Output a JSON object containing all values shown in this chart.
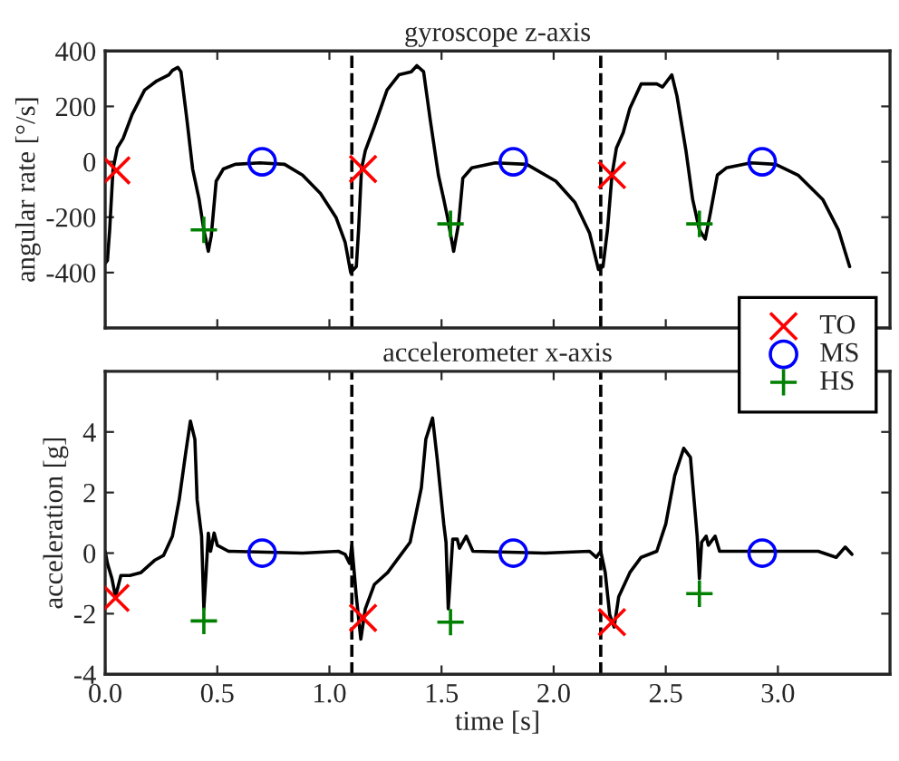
{
  "chart_data": [
    {
      "type": "line",
      "title": "gyroscope z-axis",
      "ylabel": "angular rate [°/s]",
      "xlim": [
        0,
        3.5
      ],
      "xticks": [
        {
          "value": 0,
          "label": null
        },
        {
          "value": 0.5,
          "label": null
        },
        {
          "value": 1,
          "label": null
        },
        {
          "value": 1.5,
          "label": null
        },
        {
          "value": 2,
          "label": null
        },
        {
          "value": 2.5,
          "label": null
        },
        {
          "value": 3,
          "label": null
        }
      ],
      "ylim": [
        -600,
        400
      ],
      "yticks": [
        -400,
        -200,
        0,
        200,
        400
      ],
      "tick_labels": "y",
      "grid": false,
      "legend": "bottom right",
      "ref_lines": [
        {
          "axis": "x",
          "value": 1.1,
          "color": "#000000",
          "line_style": "dashed"
        },
        {
          "axis": "x",
          "value": 2.21,
          "color": "#000000",
          "line_style": "dashed"
        }
      ],
      "series": [
        {
          "color": "#000000",
          "marker": "none",
          "line_style": "solid",
          "x": [
            0.0,
            0.01,
            0.02,
            0.035,
            0.054,
            0.08,
            0.12,
            0.176,
            0.23,
            0.284,
            0.3,
            0.324,
            0.338,
            0.365,
            0.39,
            0.419,
            0.44,
            0.46,
            0.473,
            0.495,
            0.527,
            0.58,
            0.69,
            0.8,
            0.88,
            0.96,
            1.03,
            1.07,
            1.095,
            1.12,
            1.13,
            1.143,
            1.16,
            1.2,
            1.257,
            1.31,
            1.365,
            1.39,
            1.42,
            1.45,
            1.486,
            1.51,
            1.527,
            1.554,
            1.576,
            1.595,
            1.635,
            1.74,
            1.88,
            2.01,
            2.095,
            2.16,
            2.2,
            2.22,
            2.24,
            2.26,
            2.28,
            2.31,
            2.34,
            2.39,
            2.46,
            2.486,
            2.527,
            2.55,
            2.59,
            2.62,
            2.65,
            2.676,
            2.7,
            2.73,
            2.77,
            2.88,
            2.99,
            3.09,
            3.2,
            3.27,
            3.32
          ],
          "values": [
            -367,
            -356,
            -246,
            -26,
            50,
            84,
            171,
            259,
            292,
            314,
            330,
            341,
            325,
            149,
            -26,
            -136,
            -246,
            -323,
            -268,
            -70,
            -26,
            -9,
            -4,
            -9,
            -48,
            -114,
            -202,
            -290,
            -400,
            -378,
            -246,
            -26,
            40,
            127,
            259,
            314,
            325,
            347,
            325,
            149,
            -48,
            -136,
            -202,
            -323,
            -224,
            -59,
            -22,
            -4,
            -9,
            -70,
            -147,
            -257,
            -389,
            -378,
            -246,
            -48,
            50,
            105,
            193,
            281,
            281,
            270,
            314,
            237,
            40,
            -136,
            -246,
            -279,
            -180,
            -48,
            -22,
            -4,
            -9,
            -48,
            -136,
            -246,
            -378
          ]
        },
        {
          "type": "scatter",
          "name": "TO",
          "color": "#ff0000",
          "marker": "cross",
          "x": [
            0.05,
            1.15,
            2.26
          ],
          "values": [
            -31,
            -26,
            -48
          ]
        },
        {
          "type": "scatter",
          "name": "MS",
          "color": "#0000ff",
          "marker": "circle",
          "x": [
            0.7,
            1.82,
            2.93
          ],
          "values": [
            0,
            0,
            0
          ]
        },
        {
          "type": "scatter",
          "name": "HS",
          "color": "#008000",
          "marker": "plus",
          "x": [
            0.44,
            1.54,
            2.65
          ],
          "values": [
            -246,
            -224,
            -224
          ]
        }
      ]
    },
    {
      "type": "line",
      "title": "accelerometer x-axis",
      "xlabel": "time [s]",
      "ylabel": "acceleration [g]",
      "xlim": [
        0,
        3.5
      ],
      "xticks": [
        {
          "value": 0,
          "label": "0.0"
        },
        {
          "value": 0.5,
          "label": "0.5"
        },
        {
          "value": 1,
          "label": "1.0"
        },
        {
          "value": 1.5,
          "label": "1.5"
        },
        {
          "value": 2,
          "label": "2.0"
        },
        {
          "value": 2.5,
          "label": "2.5"
        },
        {
          "value": 3,
          "label": "3.0"
        }
      ],
      "ylim": [
        -4,
        6
      ],
      "yticks": [
        -4,
        -2,
        0,
        2,
        4
      ],
      "grid": false,
      "legend": false,
      "ref_lines": [
        {
          "axis": "x",
          "value": 1.1,
          "color": "#000000",
          "line_style": "dashed"
        },
        {
          "axis": "x",
          "value": 2.21,
          "color": "#000000",
          "line_style": "dashed"
        }
      ],
      "series": [
        {
          "color": "#000000",
          "marker": "none",
          "line_style": "solid",
          "x": [
            0.0,
            0.01,
            0.03,
            0.046,
            0.07,
            0.11,
            0.16,
            0.22,
            0.26,
            0.3,
            0.33,
            0.36,
            0.38,
            0.4,
            0.41,
            0.43,
            0.44,
            0.45,
            0.46,
            0.47,
            0.486,
            0.5,
            0.55,
            0.88,
            1.04,
            1.07,
            1.09,
            1.1,
            1.12,
            1.14,
            1.16,
            1.2,
            1.26,
            1.31,
            1.36,
            1.41,
            1.43,
            1.46,
            1.48,
            1.51,
            1.52,
            1.53,
            1.55,
            1.57,
            1.58,
            1.61,
            1.64,
            1.96,
            2.16,
            2.19,
            2.21,
            2.23,
            2.25,
            2.27,
            2.29,
            2.34,
            2.39,
            2.46,
            2.5,
            2.54,
            2.58,
            2.61,
            2.64,
            2.65,
            2.66,
            2.68,
            2.69,
            2.72,
            2.74,
            3.18,
            3.26,
            3.3,
            3.33
          ],
          "values": [
            0.06,
            -0.34,
            -0.84,
            -1.44,
            -0.74,
            -0.74,
            -0.64,
            -0.24,
            -0.08,
            0.56,
            1.76,
            3.36,
            4.36,
            3.76,
            1.76,
            0.56,
            -1.84,
            -0.64,
            0.66,
            0.06,
            0.66,
            0.26,
            0.06,
            0,
            0.06,
            -0.04,
            -0.34,
            0.26,
            -1.44,
            -2.84,
            -1.84,
            -1.04,
            -0.64,
            -0.14,
            0.36,
            2.16,
            3.76,
            4.46,
            3.16,
            0.96,
            0.36,
            -1.84,
            0.46,
            0.46,
            0.16,
            0.56,
            0.06,
            0,
            0.06,
            -0.14,
            0.06,
            -0.64,
            -2.04,
            -2.44,
            -1.44,
            -0.64,
            -0.14,
            0.06,
            0.96,
            2.56,
            3.46,
            3.16,
            0.56,
            -0.84,
            0.36,
            0.56,
            0.26,
            0.56,
            0.06,
            0.06,
            -0.14,
            0.2,
            -0.04
          ]
        },
        {
          "type": "scatter",
          "color": "#ff0000",
          "marker": "cross",
          "x": [
            0.046,
            1.15,
            2.26
          ],
          "values": [
            -1.48,
            -2.14,
            -2.28
          ]
        },
        {
          "type": "scatter",
          "color": "#0000ff",
          "marker": "circle",
          "x": [
            0.7,
            1.82,
            2.93
          ],
          "values": [
            0,
            0,
            0
          ]
        },
        {
          "type": "scatter",
          "color": "#008000",
          "marker": "plus",
          "x": [
            0.44,
            1.54,
            2.65
          ],
          "values": [
            -2.24,
            -2.28,
            -1.34
          ]
        }
      ]
    }
  ]
}
